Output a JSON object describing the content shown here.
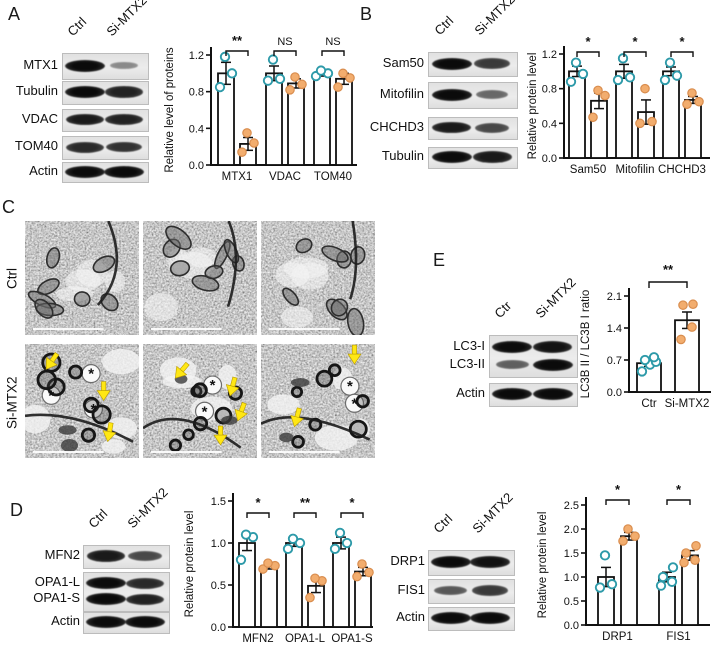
{
  "figure_title": "MTX2 knockdown figure",
  "colors": {
    "teal": "#2d9aa9",
    "orange_fill": "#f2ad6e",
    "orange_stroke": "#d98d4e",
    "axis_black": "#111111",
    "arrow_yellow": "#ffe714",
    "asterisk_red": "#e03030",
    "blot_bg": "#e4e4e4"
  },
  "panels": {
    "A": {
      "letter": "A",
      "blot": {
        "lane_headers": [
          "Ctrl",
          "Si-MTX2"
        ],
        "boxes": [
          {
            "bands": [
              {
                "label": "MTX1",
                "lanes": [
                  1.0,
                  0.18
                ]
              }
            ]
          },
          {
            "bands": [
              {
                "label": "Tubulin",
                "lanes": [
                  1.0,
                  0.85
                ]
              }
            ]
          },
          {
            "bands": [
              {
                "label": "VDAC",
                "lanes": [
                  0.9,
                  0.85
                ]
              }
            ]
          },
          {
            "bands": [
              {
                "label": "TOM40",
                "lanes": [
                  0.8,
                  0.75
                ]
              }
            ]
          },
          {
            "bands": [
              {
                "label": "Actin",
                "lanes": [
                  1.0,
                  1.0
                ]
              }
            ]
          }
        ]
      }
    },
    "B": {
      "letter": "B",
      "blot": {
        "lane_headers": [
          "Ctrl",
          "Si-MTX2"
        ],
        "boxes": [
          {
            "bands": [
              {
                "label": "Sam50",
                "lanes": [
                  1.0,
                  0.7
                ]
              }
            ]
          },
          {
            "bands": [
              {
                "label": "Mitofilin",
                "lanes": [
                  1.0,
                  0.4
                ]
              }
            ]
          },
          {
            "bands": [
              {
                "label": "CHCHD3",
                "lanes": [
                  0.9,
                  0.6
                ]
              }
            ]
          },
          {
            "bands": [
              {
                "label": "Tubulin",
                "lanes": [
                  1.0,
                  0.9
                ]
              }
            ]
          }
        ]
      }
    },
    "C": {
      "letter": "C",
      "row_labels": [
        "Ctrl",
        "Si-MTX2"
      ],
      "tiles": [
        {
          "group": "Ctrl",
          "col": 0,
          "markers": []
        },
        {
          "group": "Ctrl",
          "col": 1,
          "markers": []
        },
        {
          "group": "Ctrl",
          "col": 2,
          "markers": []
        },
        {
          "group": "Si-MTX2",
          "col": 0,
          "markers": [
            {
              "type": "arrow",
              "x": 0.2,
              "y": 0.2,
              "rot": 35
            },
            {
              "type": "arrow",
              "x": 0.69,
              "y": 0.47,
              "rot": 0
            },
            {
              "type": "arrow",
              "x": 0.73,
              "y": 0.83,
              "rot": 10
            },
            {
              "type": "asterisk",
              "x": 0.58,
              "y": 0.26
            },
            {
              "type": "asterisk",
              "x": 0.23,
              "y": 0.45
            },
            {
              "type": "asterisk",
              "x": 0.6,
              "y": 0.57
            }
          ]
        },
        {
          "group": "Si-MTX2",
          "col": 1,
          "markers": [
            {
              "type": "arrow",
              "x": 0.3,
              "y": 0.28,
              "rot": 40
            },
            {
              "type": "arrow",
              "x": 0.77,
              "y": 0.43,
              "rot": 15
            },
            {
              "type": "arrow",
              "x": 0.84,
              "y": 0.65,
              "rot": 20
            },
            {
              "type": "arrow",
              "x": 0.68,
              "y": 0.86,
              "rot": 0
            },
            {
              "type": "asterisk",
              "x": 0.61,
              "y": 0.36
            },
            {
              "type": "asterisk",
              "x": 0.54,
              "y": 0.59
            }
          ]
        },
        {
          "group": "Si-MTX2",
          "col": 2,
          "markers": [
            {
              "type": "arrow",
              "x": 0.82,
              "y": 0.15,
              "rot": 0
            },
            {
              "type": "arrow",
              "x": 0.3,
              "y": 0.7,
              "rot": 15
            },
            {
              "type": "asterisk",
              "x": 0.78,
              "y": 0.37
            },
            {
              "type": "asterisk",
              "x": 0.82,
              "y": 0.52
            }
          ]
        }
      ]
    },
    "D": {
      "letter": "D",
      "blot_left": {
        "lane_headers": [
          "Ctrl",
          "Si-MTX2"
        ],
        "boxes": [
          {
            "bands": [
              {
                "label": "MFN2",
                "lanes": [
                  0.9,
                  0.6
                ]
              }
            ]
          },
          {
            "bands": [
              {
                "label": "OPA1-L",
                "lanes": [
                  1.0,
                  0.8
                ]
              },
              {
                "label": "OPA1-S",
                "lanes": [
                  1.0,
                  0.85
                ]
              }
            ]
          },
          {
            "bands": [
              {
                "label": "Actin",
                "lanes": [
                  1.0,
                  1.0
                ]
              }
            ]
          }
        ]
      },
      "blot_right": {
        "lane_headers": [
          "Ctrl",
          "Si-MTX2"
        ],
        "boxes": [
          {
            "bands": [
              {
                "label": "DRP1",
                "lanes": [
                  1.0,
                  0.95
                ]
              }
            ]
          },
          {
            "bands": [
              {
                "label": "FIS1",
                "lanes": [
                  0.5,
                  0.7
                ]
              }
            ]
          },
          {
            "bands": [
              {
                "label": "Actin",
                "lanes": [
                  1.0,
                  1.0
                ]
              }
            ]
          }
        ]
      }
    },
    "E": {
      "letter": "E",
      "blot": {
        "lane_headers": [
          "Ctr",
          "Si-MTX2"
        ],
        "boxes": [
          {
            "bands": [
              {
                "label": "LC3-I",
                "lanes": [
                  1.0,
                  0.95
                ]
              },
              {
                "label": "LC3-II",
                "lanes": [
                  0.45,
                  1.0
                ]
              }
            ]
          },
          {
            "bands": [
              {
                "label": "Actin",
                "lanes": [
                  1.0,
                  1.0
                ]
              }
            ]
          }
        ]
      }
    }
  },
  "chart_data": [
    {
      "id": "chartA",
      "type": "bar",
      "ylabel": "Relative level of proteins",
      "ylim": [
        0,
        1.2
      ],
      "yticks": [
        "0.0",
        "0.4",
        "0.8",
        "1.2"
      ],
      "series_names": [
        "Ctrl",
        "Si-MTX2"
      ],
      "groups": [
        {
          "label": "MTX1",
          "sig": "**",
          "bars": [
            {
              "series": "Ctrl",
              "value": 1.0,
              "err": 0.12,
              "points": [
                0.85,
                1.0,
                1.18
              ]
            },
            {
              "series": "Si-MTX2",
              "value": 0.23,
              "err": 0.07,
              "points": [
                0.14,
                0.24,
                0.35
              ]
            }
          ]
        },
        {
          "label": "VDAC",
          "sig": "NS",
          "bars": [
            {
              "series": "Ctrl",
              "value": 1.0,
              "err": 0.08,
              "points": [
                0.92,
                0.94,
                1.15
              ]
            },
            {
              "series": "Si-MTX2",
              "value": 0.89,
              "err": 0.05,
              "points": [
                0.82,
                0.88,
                0.96
              ]
            }
          ]
        },
        {
          "label": "TOM40",
          "sig": "NS",
          "bars": [
            {
              "series": "Ctrl",
              "value": 1.0,
              "err": 0.03,
              "points": [
                0.97,
                1.0,
                1.03
              ]
            },
            {
              "series": "Si-MTX2",
              "value": 0.94,
              "err": 0.06,
              "points": [
                0.85,
                0.95,
                1.0
              ]
            }
          ]
        }
      ]
    },
    {
      "id": "chartB",
      "type": "bar",
      "ylabel": "Relative protein level",
      "ylim": [
        0,
        1.2
      ],
      "yticks": [
        "0.0",
        "0.4",
        "0.8",
        "1.2"
      ],
      "series_names": [
        "Ctrl",
        "Si-MTX2"
      ],
      "groups": [
        {
          "label": "Sam50",
          "sig": "*",
          "bars": [
            {
              "series": "Ctrl",
              "value": 1.0,
              "err": 0.06,
              "points": [
                0.88,
                0.97,
                1.1
              ]
            },
            {
              "series": "Si-MTX2",
              "value": 0.66,
              "err": 0.09,
              "points": [
                0.47,
                0.72,
                0.78
              ]
            }
          ]
        },
        {
          "label": "Mitofilin",
          "sig": "*",
          "bars": [
            {
              "series": "Ctrl",
              "value": 1.0,
              "err": 0.08,
              "points": [
                0.9,
                0.93,
                1.15
              ]
            },
            {
              "series": "Si-MTX2",
              "value": 0.53,
              "err": 0.14,
              "points": [
                0.4,
                0.42,
                0.8
              ]
            }
          ]
        },
        {
          "label": "CHCHD3",
          "sig": "*",
          "bars": [
            {
              "series": "Ctrl",
              "value": 1.0,
              "err": 0.05,
              "points": [
                0.9,
                0.95,
                1.1
              ]
            },
            {
              "series": "Si-MTX2",
              "value": 0.67,
              "err": 0.04,
              "points": [
                0.62,
                0.65,
                0.75
              ]
            }
          ]
        }
      ]
    },
    {
      "id": "chartE",
      "type": "bar",
      "ylabel": "LC3B II / LC3B I ratio",
      "ylim": [
        0,
        2.1
      ],
      "yticks": [
        "0.0",
        "0.7",
        "1.4",
        "2.1"
      ],
      "series_names": [
        "Ctr",
        "Si-MTX2"
      ],
      "chart_sig": "**",
      "groups": [
        {
          "label": "Ctr",
          "bars": [
            {
              "series": "Ctr",
              "value": 0.63,
              "err": 0.07,
              "points": [
                0.45,
                0.6,
                0.66,
                0.7,
                0.76
              ]
            }
          ]
        },
        {
          "label": "Si-MTX2",
          "bars": [
            {
              "series": "Si-MTX2",
              "value": 1.57,
              "err": 0.18,
              "points": [
                1.15,
                1.42,
                1.9,
                1.92
              ]
            }
          ]
        }
      ]
    },
    {
      "id": "chartDleft",
      "type": "bar",
      "ylabel": "Relative protein level",
      "ylim": [
        0,
        1.5
      ],
      "yticks": [
        "0.0",
        "0.5",
        "1.0",
        "1.5"
      ],
      "series_names": [
        "Ctrl",
        "Si-MTX2"
      ],
      "groups": [
        {
          "label": "MFN2",
          "sig": "*",
          "bars": [
            {
              "series": "Ctrl",
              "value": 1.0,
              "err": 0.09,
              "points": [
                0.8,
                1.07,
                1.1
              ]
            },
            {
              "series": "Si-MTX2",
              "value": 0.72,
              "err": 0.03,
              "points": [
                0.69,
                0.73,
                0.76
              ]
            }
          ]
        },
        {
          "label": "OPA1-L",
          "sig": "**",
          "bars": [
            {
              "series": "Ctrl",
              "value": 1.0,
              "err": 0.04,
              "points": [
                0.93,
                1.0,
                1.05
              ]
            },
            {
              "series": "Si-MTX2",
              "value": 0.49,
              "err": 0.08,
              "points": [
                0.35,
                0.55,
                0.58
              ]
            }
          ]
        },
        {
          "label": "OPA1-S",
          "sig": "*",
          "bars": [
            {
              "series": "Ctrl",
              "value": 1.0,
              "err": 0.07,
              "points": [
                0.93,
                1.0,
                1.12
              ]
            },
            {
              "series": "Si-MTX2",
              "value": 0.66,
              "err": 0.05,
              "points": [
                0.6,
                0.65,
                0.75
              ]
            }
          ]
        }
      ]
    },
    {
      "id": "chartDright",
      "type": "bar",
      "ylabel": "Relative protein level",
      "ylim": [
        0,
        2.5
      ],
      "yticks": [
        "0.0",
        "0.5",
        "1.0",
        "1.5",
        "2.0",
        "2.5"
      ],
      "series_names": [
        "Ctrl",
        "Si-MTX2"
      ],
      "groups": [
        {
          "label": "DRP1",
          "sig": "*",
          "bars": [
            {
              "series": "Ctrl",
              "value": 1.0,
              "err": 0.2,
              "points": [
                0.78,
                0.85,
                1.45
              ]
            },
            {
              "series": "Si-MTX2",
              "value": 1.85,
              "err": 0.08,
              "points": [
                1.75,
                1.85,
                2.0
              ]
            }
          ]
        },
        {
          "label": "FIS1",
          "sig": "*",
          "bars": [
            {
              "series": "Ctrl",
              "value": 1.0,
              "err": 0.1,
              "points": [
                0.82,
                0.9,
                1.0,
                1.2
              ]
            },
            {
              "series": "Si-MTX2",
              "value": 1.45,
              "err": 0.1,
              "points": [
                1.3,
                1.35,
                1.5,
                1.65
              ]
            }
          ]
        }
      ]
    }
  ]
}
